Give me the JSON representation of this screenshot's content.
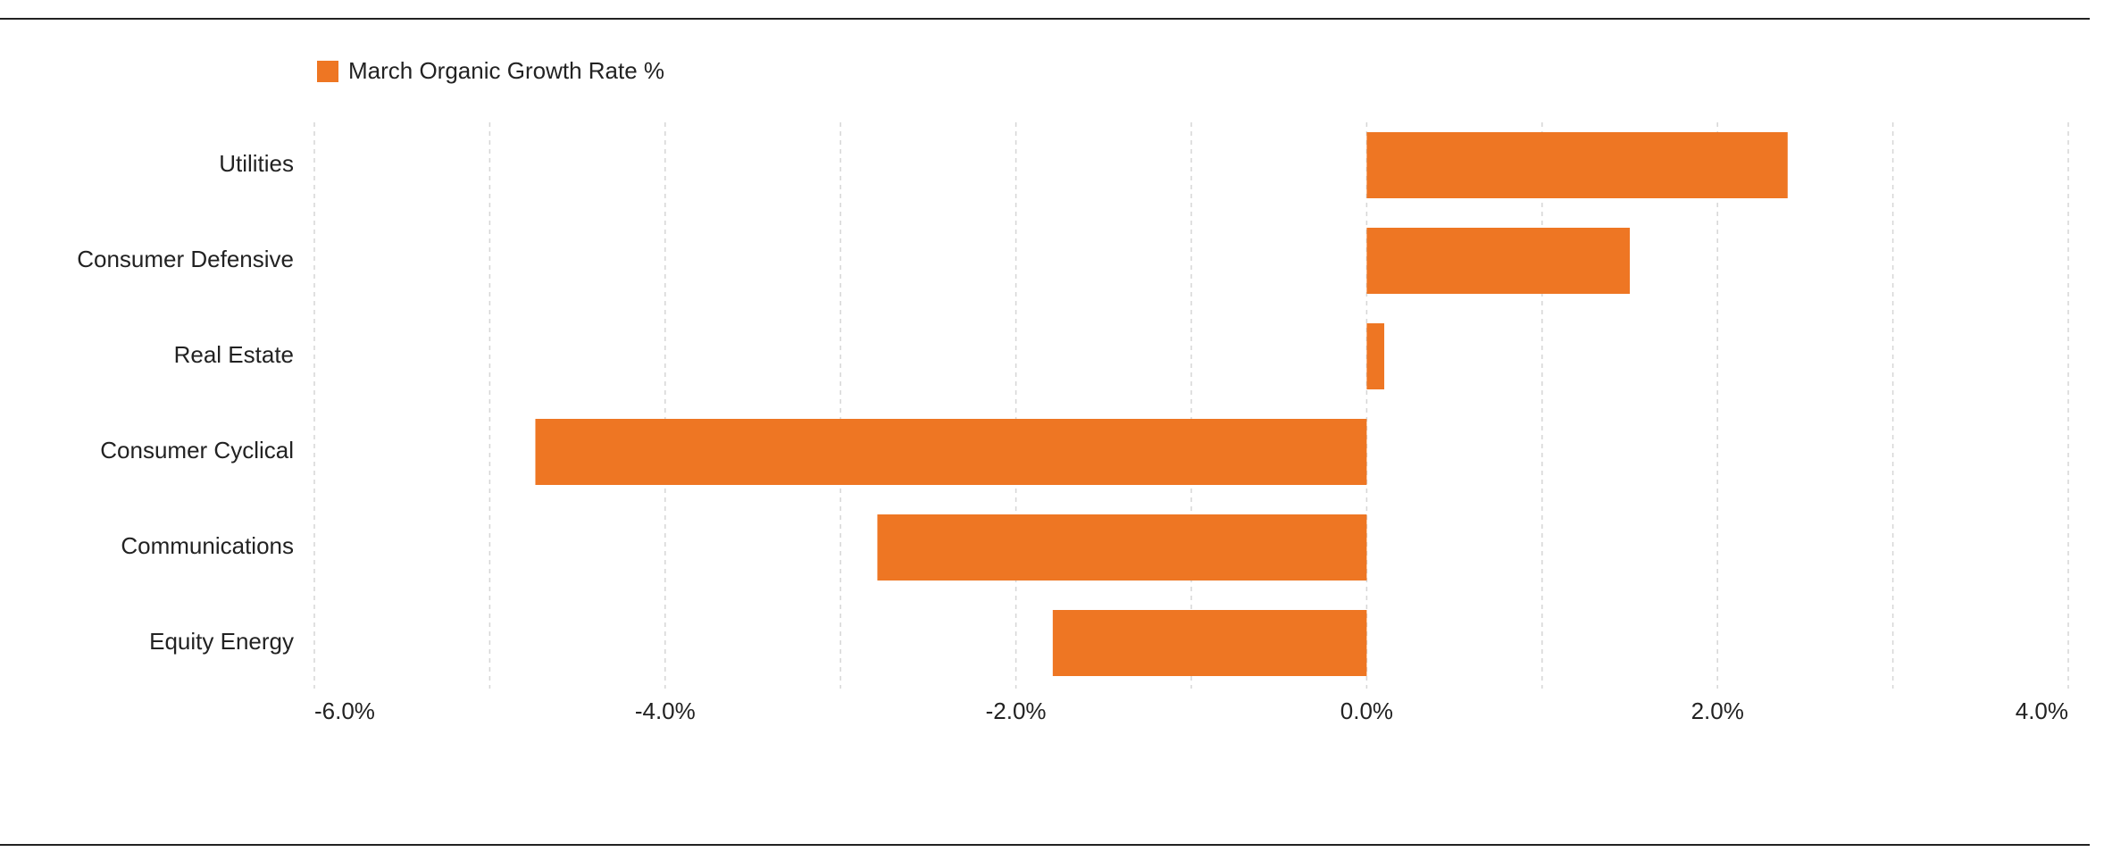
{
  "chart_data": {
    "type": "hbar",
    "categories": [
      "Utilities",
      "Consumer Defensive",
      "Real Estate",
      "Consumer Cyclical",
      "Communications",
      "Equity Energy"
    ],
    "series": [
      {
        "name": "March Organic Growth Rate %",
        "color": "#ee7623",
        "values": [
          2.4,
          1.5,
          0.1,
          -4.74,
          -2.79,
          -1.79
        ]
      }
    ],
    "xlim": [
      -6,
      4
    ],
    "xticks": [
      {
        "value": -6,
        "label": "-6.0%"
      },
      {
        "value": -4,
        "label": "-4.0%"
      },
      {
        "value": -2,
        "label": "-2.0%"
      },
      {
        "value": 0,
        "label": "0.0%"
      },
      {
        "value": 2,
        "label": "2.0%"
      },
      {
        "value": 4,
        "label": "4.0%"
      }
    ],
    "minor_xticks": [
      -5,
      -3,
      -1,
      1,
      3
    ],
    "grid": true,
    "legend": "top-left"
  }
}
